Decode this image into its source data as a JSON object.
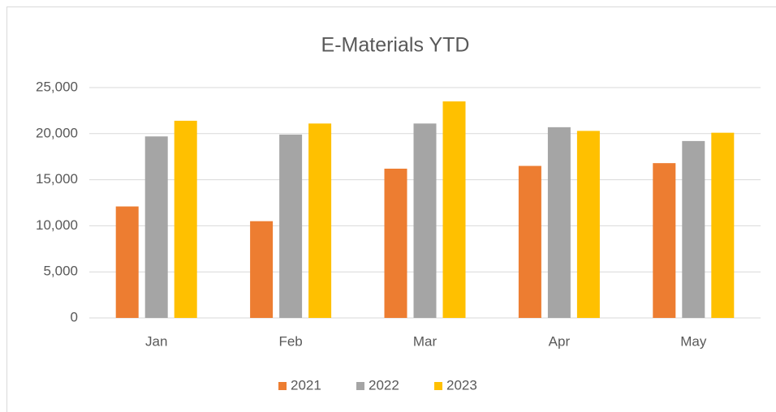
{
  "chart_data": {
    "type": "bar",
    "title": "E-Materials YTD",
    "categories": [
      "Jan",
      "Feb",
      "Mar",
      "Apr",
      "May"
    ],
    "series": [
      {
        "name": "2021",
        "color": "#ED7D31",
        "values": [
          12100,
          10500,
          16200,
          16500,
          16800
        ]
      },
      {
        "name": "2022",
        "color": "#A5A5A5",
        "values": [
          19700,
          19900,
          21100,
          20700,
          19200
        ]
      },
      {
        "name": "2023",
        "color": "#FFC000",
        "values": [
          21400,
          21100,
          23500,
          20300,
          20100
        ]
      }
    ],
    "ylim": [
      0,
      25000
    ],
    "yticks": [
      0,
      {
        "value": 5000,
        "label": "5,000"
      },
      {
        "value": 10000,
        "label": "10,000"
      },
      {
        "value": 15000,
        "label": "15,000"
      },
      {
        "value": 20000,
        "label": "20,000"
      },
      {
        "value": 25000,
        "label": "25,000"
      }
    ],
    "grid": true,
    "legend": "bottom"
  }
}
